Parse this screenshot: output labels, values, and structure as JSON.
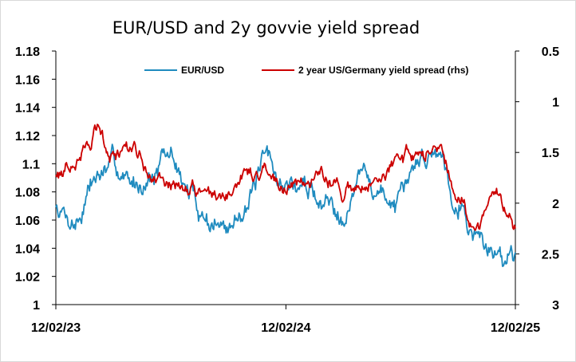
{
  "chart_data": {
    "type": "line",
    "title": "EUR/USD and 2y govvie yield spread",
    "x_tick_labels": [
      "12/02/23",
      "12/02/24",
      "12/02/25"
    ],
    "x_range": [
      "12/02/23",
      "12/02/25"
    ],
    "y_left": {
      "min": 1.0,
      "max": 1.18,
      "ticks": [
        "1",
        "1.02",
        "1.04",
        "1.06",
        "1.08",
        "1.1",
        "1.12",
        "1.14",
        "1.16",
        "1.18"
      ]
    },
    "y_right": {
      "min": 0.5,
      "max": 3.0,
      "inverted": true,
      "ticks": [
        "0.5",
        "1",
        "1.5",
        "2",
        "2.5",
        "3"
      ]
    },
    "grid": false,
    "legend_position": "top",
    "series": [
      {
        "name": "EUR/USD",
        "axis": "left",
        "color": "#1f8bbf",
        "x": [
          "12/02/23",
          "01/02/24",
          "02/02/24",
          "03/02/24",
          "04/02/24",
          "05/02/24",
          "06/02/24",
          "07/02/24",
          "08/02/24",
          "09/02/24",
          "10/02/24",
          "11/02/24",
          "12/02/24",
          "01/02/25",
          "02/02/25",
          "03/02/25",
          "04/02/25",
          "05/02/25",
          "06/02/25",
          "07/02/25",
          "08/02/25",
          "09/02/25",
          "10/02/25",
          "11/02/25",
          "12/02/25"
        ],
        "values": [
          1.07,
          1.06,
          1.09,
          1.098,
          1.085,
          1.093,
          1.105,
          1.078,
          1.06,
          1.052,
          1.075,
          1.1,
          1.085,
          1.083,
          1.073,
          1.068,
          1.092,
          1.078,
          1.072,
          1.103,
          1.11,
          1.075,
          1.048,
          1.035,
          1.037
        ]
      },
      {
        "name": "2 year US/Germany yield spread (rhs)",
        "axis": "right",
        "color": "#cc0000",
        "x": [
          "12/02/23",
          "01/02/24",
          "02/02/24",
          "03/02/24",
          "04/02/24",
          "05/02/24",
          "06/02/24",
          "07/02/24",
          "08/02/24",
          "09/02/24",
          "10/02/24",
          "11/02/24",
          "12/02/24",
          "01/02/25",
          "02/02/25",
          "03/02/25",
          "04/02/25",
          "05/02/25",
          "06/02/25",
          "07/02/25",
          "08/02/25",
          "09/02/25",
          "10/02/25",
          "11/02/25",
          "12/02/25"
        ],
        "values": [
          1.75,
          1.55,
          1.3,
          1.5,
          1.45,
          1.7,
          1.8,
          1.85,
          1.9,
          1.85,
          1.75,
          1.7,
          1.85,
          1.8,
          1.75,
          1.9,
          1.78,
          1.7,
          1.55,
          1.5,
          1.4,
          1.9,
          2.25,
          1.95,
          2.25
        ]
      }
    ]
  }
}
